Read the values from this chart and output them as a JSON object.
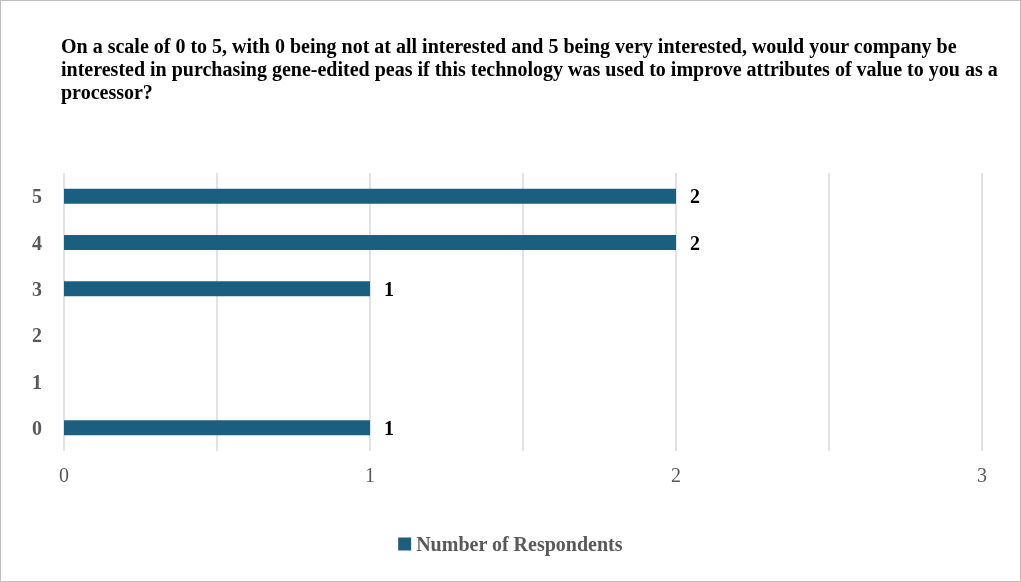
{
  "chart_data": {
    "type": "bar",
    "orientation": "horizontal",
    "title": "On a scale of 0 to 5, with 0 being not at all interested and 5 being very interested, would your company be interested in purchasing gene-edited peas if this technology was used to improve attributes of value to you as a processor?",
    "categories": [
      "5",
      "4",
      "3",
      "2",
      "1",
      "0"
    ],
    "series": [
      {
        "name": "Number of Respondents",
        "color": "#1a5f80",
        "values": [
          2,
          2,
          1,
          0,
          0,
          1
        ],
        "value_labels": [
          "2",
          "2",
          "1",
          null,
          null,
          "1"
        ]
      }
    ],
    "xlim": [
      0,
      3
    ],
    "xticks": [
      0,
      1,
      2,
      3
    ],
    "grid": "x",
    "legend": "bottom"
  }
}
